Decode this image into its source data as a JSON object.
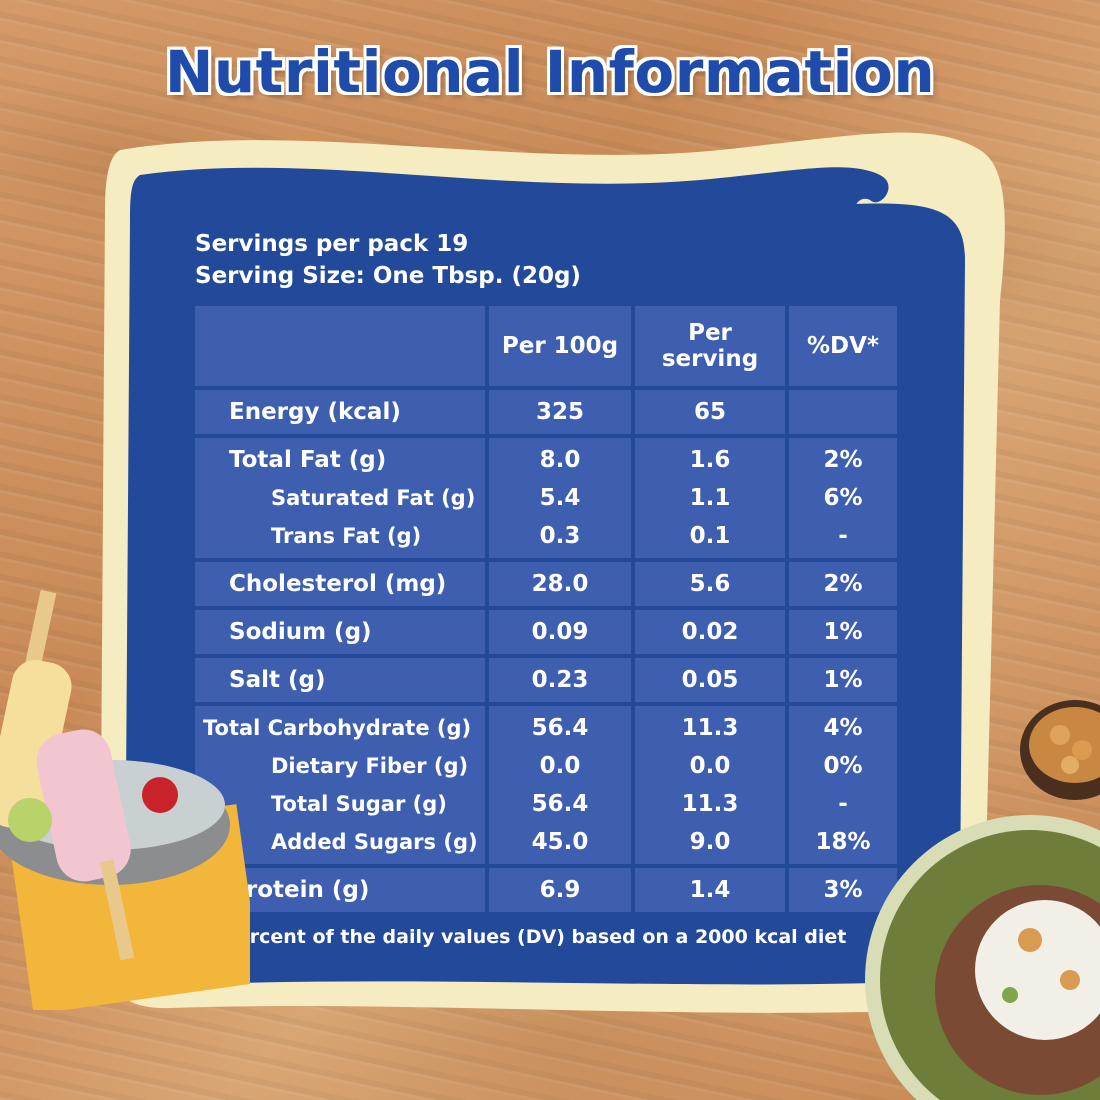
{
  "title": "Nutritional Information",
  "servings_per_pack": "Servings per pack 19",
  "serving_size": "Serving Size: One Tbsp. (20g)",
  "columns": [
    "Per 100g",
    "Per serving",
    "%DV*"
  ],
  "columns_wrapped": {
    "per_serving_line1": "Per",
    "per_serving_line2": "serving"
  },
  "groups": [
    {
      "rows": [
        {
          "name": "Energy (kcal)",
          "per100": "325",
          "serving": "65",
          "dv": "",
          "sub": false
        }
      ]
    },
    {
      "rows": [
        {
          "name": "Total Fat (g)",
          "per100": "8.0",
          "serving": "1.6",
          "dv": "2%",
          "sub": false
        },
        {
          "name": "Saturated Fat (g)",
          "per100": "5.4",
          "serving": "1.1",
          "dv": "6%",
          "sub": true
        },
        {
          "name": "Trans Fat (g)",
          "per100": "0.3",
          "serving": "0.1",
          "dv": "-",
          "sub": true
        }
      ]
    },
    {
      "rows": [
        {
          "name": "Cholesterol (mg)",
          "per100": "28.0",
          "serving": "5.6",
          "dv": "2%",
          "sub": false
        }
      ]
    },
    {
      "rows": [
        {
          "name": "Sodium (g)",
          "per100": "0.09",
          "serving": "0.02",
          "dv": "1%",
          "sub": false
        }
      ]
    },
    {
      "rows": [
        {
          "name": "Salt (g)",
          "per100": "0.23",
          "serving": "0.05",
          "dv": "1%",
          "sub": false
        }
      ]
    },
    {
      "rows": [
        {
          "name": "Total Carbohydrate (g)",
          "per100": "56.4",
          "serving": "11.3",
          "dv": "4%",
          "sub": false
        },
        {
          "name": "Dietary Fiber (g)",
          "per100": "0.0",
          "serving": "0.0",
          "dv": "0%",
          "sub": true
        },
        {
          "name": "Total Sugar (g)",
          "per100": "56.4",
          "serving": "11.3",
          "dv": "-",
          "sub": true
        },
        {
          "name": "Added Sugars (g)",
          "per100": "45.0",
          "serving": "9.0",
          "dv": "18%",
          "sub": true
        }
      ]
    },
    {
      "rows": [
        {
          "name": "Protein (g)",
          "per100": "6.9",
          "serving": "1.4",
          "dv": "3%",
          "sub": false
        }
      ]
    }
  ],
  "footnote": "*Percent of the daily values (DV) based on a 2000 kcal diet",
  "colors": {
    "title_blue": "#1f4bab",
    "panel_blue": "#234a9a",
    "cell_blue": "#3e5fb0",
    "cream": "#f6ecc2",
    "wood": "#c98a57"
  },
  "decorations": [
    "popsicles-in-ice-bucket",
    "bowl-of-nuts",
    "plate-with-snack"
  ]
}
